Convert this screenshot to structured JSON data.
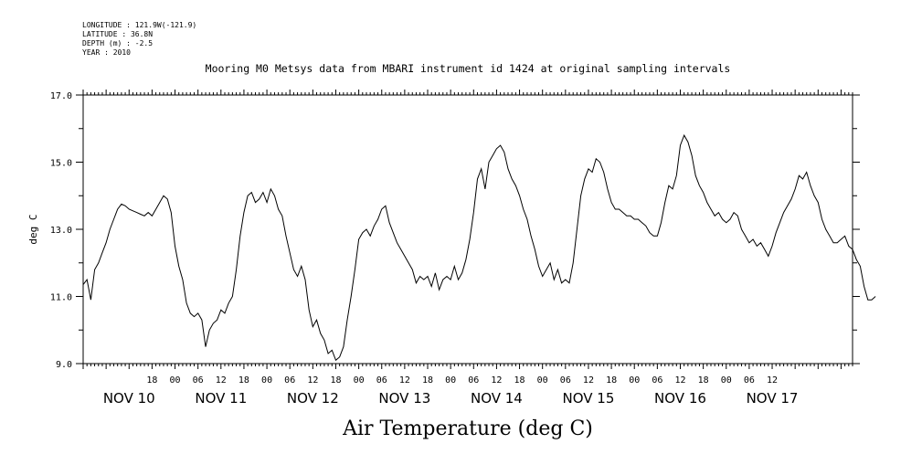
{
  "metadata": {
    "longitude": "LONGITUDE : 121.9W(-121.9)",
    "latitude": "LATITUDE : 36.8N",
    "depth": "DEPTH (m) : -2.5",
    "year": "YEAR : 2010"
  },
  "chart_data": {
    "type": "line",
    "title": "Mooring M0 Metsys data from MBARI instrument id 1424 at original sampling intervals",
    "xlabel": "Air Temperature (deg C)",
    "ylabel": "deg C",
    "ylim": [
      9.0,
      17.0
    ],
    "yticks": [
      "9.0",
      "11.0",
      "13.0",
      "15.0",
      "17.0"
    ],
    "xrange_hours": [
      -108,
      93
    ],
    "hour_tick_labels": [
      "18",
      "00",
      "06",
      "12",
      "18",
      "00",
      "06",
      "12",
      "18",
      "00",
      "06",
      "12",
      "18",
      "00",
      "06",
      "12",
      "18",
      "00",
      "06",
      "12",
      "18",
      "00",
      "06",
      "12",
      "18",
      "00",
      "06",
      "12"
    ],
    "date_labels": [
      "NOV 10",
      "NOV 11",
      "NOV 12",
      "NOV 13",
      "NOV 14",
      "NOV 15",
      "NOV 16",
      "NOV 17"
    ],
    "series": [
      {
        "points": [
          [
            0.0,
            11.35
          ],
          [
            1.0,
            11.5
          ],
          [
            2.0,
            10.9
          ],
          [
            3.0,
            11.8
          ],
          [
            4.0,
            12.0
          ],
          [
            5.0,
            12.3
          ],
          [
            6.0,
            12.6
          ],
          [
            7.0,
            13.0
          ],
          [
            8.0,
            13.3
          ],
          [
            9.0,
            13.6
          ],
          [
            10.0,
            13.75
          ],
          [
            11.0,
            13.7
          ],
          [
            12.0,
            13.6
          ],
          [
            13.0,
            13.55
          ],
          [
            14.0,
            13.5
          ],
          [
            15.0,
            13.45
          ],
          [
            16.0,
            13.4
          ],
          [
            17.0,
            13.5
          ],
          [
            18.0,
            13.4
          ],
          [
            19.0,
            13.6
          ],
          [
            20.0,
            13.8
          ],
          [
            21.0,
            14.0
          ],
          [
            22.0,
            13.9
          ],
          [
            23.0,
            13.5
          ],
          [
            24.0,
            12.5
          ],
          [
            25.0,
            11.9
          ],
          [
            26.0,
            11.5
          ],
          [
            27.0,
            10.8
          ],
          [
            28.0,
            10.5
          ],
          [
            29.0,
            10.4
          ],
          [
            30.0,
            10.5
          ],
          [
            31.0,
            10.3
          ],
          [
            32.0,
            9.5
          ],
          [
            33.0,
            10.0
          ],
          [
            34.0,
            10.2
          ],
          [
            35.0,
            10.3
          ],
          [
            36.0,
            10.6
          ],
          [
            37.0,
            10.5
          ],
          [
            38.0,
            10.8
          ],
          [
            39.0,
            11.0
          ],
          [
            40.0,
            11.8
          ],
          [
            41.0,
            12.8
          ],
          [
            42.0,
            13.5
          ],
          [
            43.0,
            14.0
          ],
          [
            44.0,
            14.1
          ],
          [
            45.0,
            13.8
          ],
          [
            46.0,
            13.9
          ],
          [
            47.0,
            14.1
          ],
          [
            48.0,
            13.8
          ],
          [
            49.0,
            14.2
          ],
          [
            50.0,
            14.0
          ],
          [
            51.0,
            13.6
          ],
          [
            52.0,
            13.4
          ],
          [
            53.0,
            12.8
          ],
          [
            54.0,
            12.3
          ],
          [
            55.0,
            11.8
          ],
          [
            56.0,
            11.6
          ],
          [
            57.0,
            11.9
          ],
          [
            58.0,
            11.5
          ],
          [
            59.0,
            10.6
          ],
          [
            60.0,
            10.1
          ],
          [
            61.0,
            10.3
          ],
          [
            62.0,
            9.9
          ],
          [
            63.0,
            9.7
          ],
          [
            64.0,
            9.3
          ],
          [
            65.0,
            9.4
          ],
          [
            66.0,
            9.1
          ],
          [
            67.0,
            9.2
          ],
          [
            68.0,
            9.5
          ],
          [
            69.0,
            10.3
          ],
          [
            70.0,
            11.0
          ],
          [
            71.0,
            11.8
          ],
          [
            72.0,
            12.7
          ],
          [
            73.0,
            12.9
          ],
          [
            74.0,
            13.0
          ],
          [
            75.0,
            12.8
          ],
          [
            76.0,
            13.1
          ],
          [
            77.0,
            13.3
          ],
          [
            78.0,
            13.6
          ],
          [
            79.0,
            13.7
          ],
          [
            80.0,
            13.2
          ],
          [
            81.0,
            12.9
          ],
          [
            82.0,
            12.6
          ],
          [
            83.0,
            12.4
          ],
          [
            84.0,
            12.2
          ],
          [
            85.0,
            12.0
          ],
          [
            86.0,
            11.8
          ],
          [
            87.0,
            11.4
          ],
          [
            88.0,
            11.6
          ],
          [
            89.0,
            11.5
          ],
          [
            90.0,
            11.6
          ],
          [
            91.0,
            11.3
          ],
          [
            92.0,
            11.7
          ],
          [
            93.0,
            11.2
          ],
          [
            94.0,
            11.5
          ],
          [
            95.0,
            11.6
          ],
          [
            96.0,
            11.5
          ],
          [
            97.0,
            11.9
          ],
          [
            98.0,
            11.5
          ],
          [
            99.0,
            11.7
          ],
          [
            100.0,
            12.1
          ],
          [
            101.0,
            12.7
          ],
          [
            102.0,
            13.5
          ],
          [
            103.0,
            14.5
          ],
          [
            104.0,
            14.8
          ],
          [
            105.0,
            14.2
          ],
          [
            106.0,
            15.0
          ],
          [
            107.0,
            15.2
          ],
          [
            108.0,
            15.4
          ],
          [
            109.0,
            15.5
          ],
          [
            110.0,
            15.3
          ],
          [
            111.0,
            14.8
          ],
          [
            112.0,
            14.5
          ],
          [
            113.0,
            14.3
          ],
          [
            114.0,
            14.0
          ],
          [
            115.0,
            13.6
          ],
          [
            116.0,
            13.3
          ],
          [
            117.0,
            12.8
          ],
          [
            118.0,
            12.4
          ],
          [
            119.0,
            11.9
          ],
          [
            120.0,
            11.6
          ],
          [
            121.0,
            11.8
          ],
          [
            122.0,
            12.0
          ],
          [
            123.0,
            11.5
          ],
          [
            124.0,
            11.8
          ],
          [
            125.0,
            11.4
          ],
          [
            126.0,
            11.5
          ],
          [
            127.0,
            11.4
          ],
          [
            128.0,
            12.0
          ],
          [
            129.0,
            13.0
          ],
          [
            130.0,
            14.0
          ],
          [
            131.0,
            14.5
          ],
          [
            132.0,
            14.8
          ],
          [
            133.0,
            14.7
          ],
          [
            134.0,
            15.1
          ],
          [
            135.0,
            15.0
          ],
          [
            136.0,
            14.7
          ],
          [
            137.0,
            14.2
          ],
          [
            138.0,
            13.8
          ],
          [
            139.0,
            13.6
          ],
          [
            140.0,
            13.6
          ],
          [
            141.0,
            13.5
          ],
          [
            142.0,
            13.4
          ],
          [
            143.0,
            13.4
          ],
          [
            144.0,
            13.3
          ],
          [
            145.0,
            13.3
          ],
          [
            146.0,
            13.2
          ],
          [
            147.0,
            13.1
          ],
          [
            148.0,
            12.9
          ],
          [
            149.0,
            12.8
          ],
          [
            150.0,
            12.8
          ],
          [
            151.0,
            13.2
          ],
          [
            152.0,
            13.8
          ],
          [
            153.0,
            14.3
          ],
          [
            154.0,
            14.2
          ],
          [
            155.0,
            14.6
          ],
          [
            156.0,
            15.5
          ],
          [
            157.0,
            15.8
          ],
          [
            158.0,
            15.6
          ],
          [
            159.0,
            15.2
          ],
          [
            160.0,
            14.6
          ],
          [
            161.0,
            14.3
          ],
          [
            162.0,
            14.1
          ],
          [
            163.0,
            13.8
          ],
          [
            164.0,
            13.6
          ],
          [
            165.0,
            13.4
          ],
          [
            166.0,
            13.5
          ],
          [
            167.0,
            13.3
          ],
          [
            168.0,
            13.2
          ],
          [
            169.0,
            13.3
          ],
          [
            170.0,
            13.5
          ],
          [
            171.0,
            13.4
          ],
          [
            172.0,
            13.0
          ],
          [
            173.0,
            12.8
          ],
          [
            174.0,
            12.6
          ],
          [
            175.0,
            12.7
          ],
          [
            176.0,
            12.5
          ],
          [
            177.0,
            12.6
          ],
          [
            178.0,
            12.4
          ],
          [
            179.0,
            12.2
          ],
          [
            180.0,
            12.5
          ],
          [
            181.0,
            12.9
          ],
          [
            182.0,
            13.2
          ],
          [
            183.0,
            13.5
          ],
          [
            184.0,
            13.7
          ],
          [
            185.0,
            13.9
          ],
          [
            186.0,
            14.2
          ],
          [
            187.0,
            14.6
          ],
          [
            188.0,
            14.5
          ],
          [
            189.0,
            14.7
          ],
          [
            190.0,
            14.3
          ],
          [
            191.0,
            14.0
          ],
          [
            192.0,
            13.8
          ],
          [
            193.0,
            13.3
          ],
          [
            194.0,
            13.0
          ],
          [
            195.0,
            12.8
          ],
          [
            196.0,
            12.6
          ],
          [
            197.0,
            12.6
          ],
          [
            198.0,
            12.7
          ],
          [
            199.0,
            12.8
          ],
          [
            200.0,
            12.5
          ],
          [
            201.0,
            12.4
          ],
          [
            202.0,
            12.1
          ],
          [
            203.0,
            11.9
          ],
          [
            204.0,
            11.3
          ],
          [
            205.0,
            10.9
          ],
          [
            206.0,
            10.9
          ],
          [
            207.0,
            11.0
          ]
        ]
      }
    ]
  }
}
